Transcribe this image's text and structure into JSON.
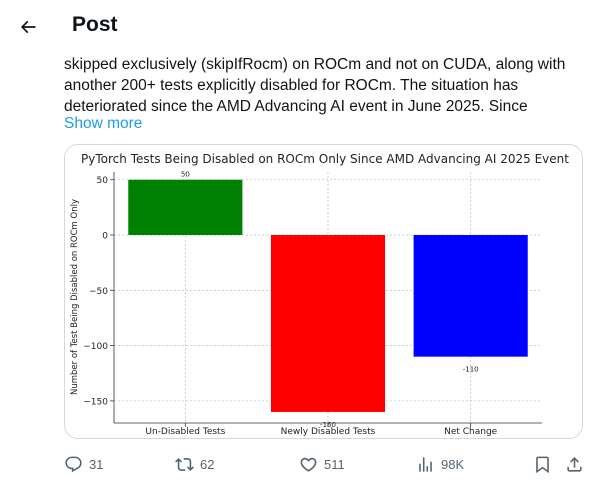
{
  "header": {
    "title": "Post"
  },
  "tweet": {
    "lines": [
      "skipped exclusively (skipIfRocm) on ROCm and not on CUDA, along with",
      "another 200+ tests explicitly disabled for ROCm. The situation has",
      "deteriorated since the AMD Advancing AI event in June 2025. Since"
    ],
    "show_more": "Show more"
  },
  "chart_data": {
    "type": "bar",
    "title": "PyTorch Tests Being Disabled on ROCm Only Since AMD Advancing AI 2025 Event",
    "ylabel": "Number of Test Being Disabled on ROCm Only",
    "xlabel": "",
    "categories": [
      "Un-Disabled Tests",
      "Newly Disabled Tests",
      "Net Change"
    ],
    "values": [
      50,
      -160,
      -110
    ],
    "data_labels": [
      "50",
      "-160",
      "-110"
    ],
    "colors": [
      "#008000",
      "#ff0000",
      "#0000ff"
    ],
    "ylim": [
      -170,
      57
    ],
    "yticks": [
      50,
      0,
      -50,
      -100,
      -150
    ],
    "ytick_labels": [
      "50",
      "0",
      "−50",
      "−100",
      "−150"
    ],
    "grid": true
  },
  "actions": {
    "replies": "31",
    "reposts": "62",
    "likes": "511",
    "views": "98K"
  },
  "icons": {
    "back": "arrow-left-icon",
    "reply": "reply-icon",
    "repost": "repost-icon",
    "like": "heart-icon",
    "views": "views-icon",
    "bookmark": "bookmark-icon",
    "share": "share-icon"
  }
}
